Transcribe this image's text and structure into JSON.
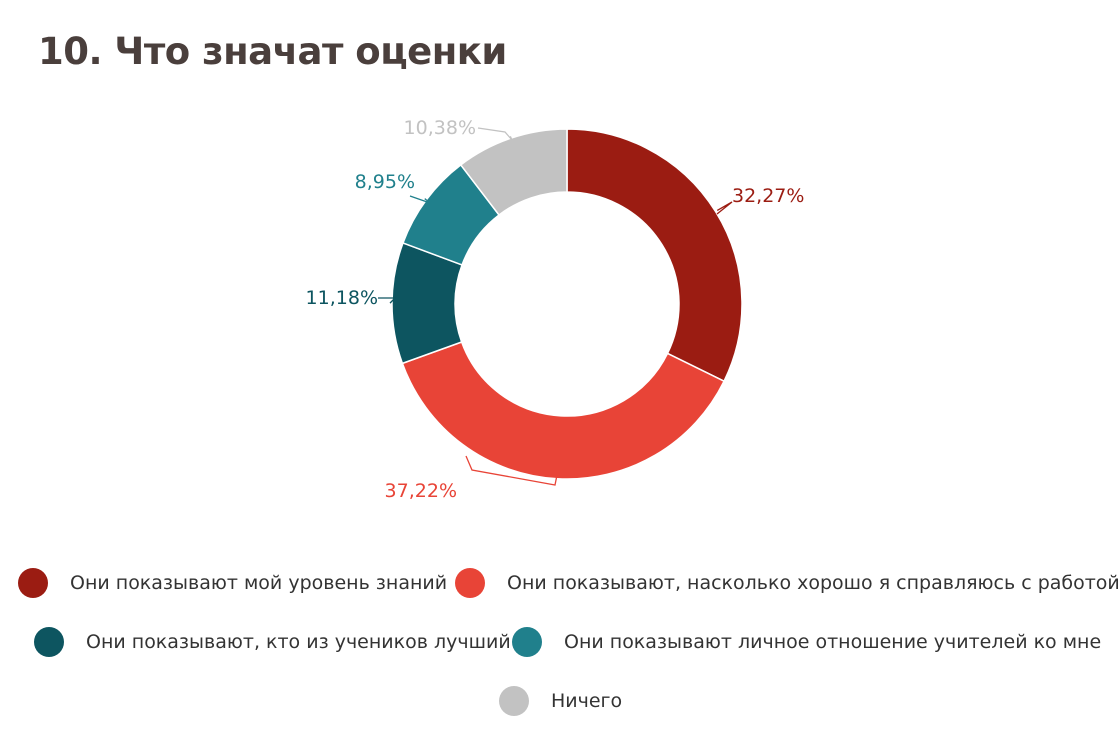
{
  "title": "10. Что значат оценки",
  "chart_data": {
    "type": "pie",
    "donut": true,
    "start": "12 o'clock, clockwise",
    "slices": [
      {
        "name": "Они показывают мой уровень знаний",
        "value": 32.27,
        "label": "32,27%",
        "color": "#9b1c12"
      },
      {
        "name": "Они показывают, насколько хорошо я справляюсь с работой",
        "value": 37.22,
        "label": "37,22%",
        "color": "#e84437"
      },
      {
        "name": "Они показывают, кто из учеников лучший",
        "value": 11.18,
        "label": "11,18%",
        "color": "#0d5560"
      },
      {
        "name": "Они показывают личное отношение учителей ко мне",
        "value": 8.95,
        "label": "8,95%",
        "color": "#20808c"
      },
      {
        "name": "Ничего",
        "value": 10.38,
        "label": "10,38%",
        "color": "#c2c2c2"
      }
    ],
    "legend": "bottom"
  }
}
